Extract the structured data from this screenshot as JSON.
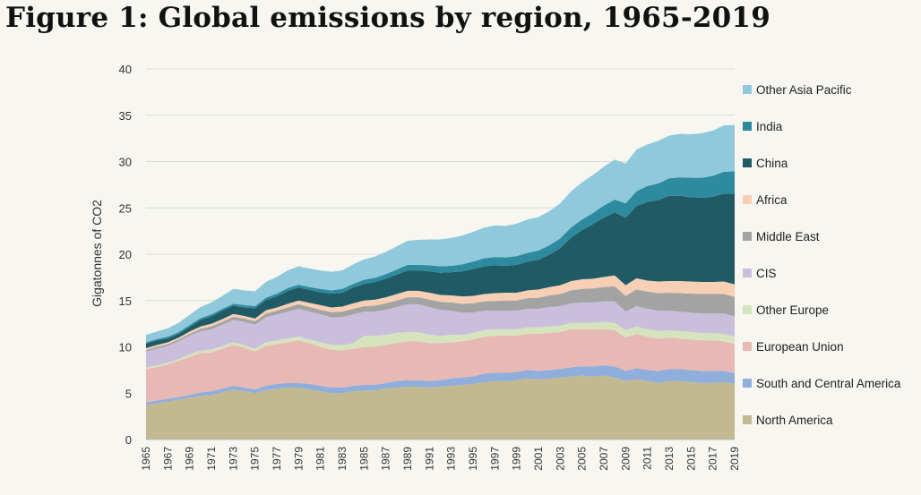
{
  "chart_data": {
    "type": "area",
    "stacked": true,
    "title": "Figure 1: Global emissions by region, 1965-2019",
    "xlabel": "",
    "ylabel": "Gigatonnes of CO2",
    "ylim": [
      0,
      40
    ],
    "yticks": [
      "0",
      "5",
      "10",
      "15",
      "20",
      "25",
      "30",
      "35",
      "40"
    ],
    "grid": true,
    "legend_position": "right",
    "x": [
      1965,
      1966,
      1967,
      1968,
      1969,
      1970,
      1971,
      1972,
      1973,
      1974,
      1975,
      1976,
      1977,
      1978,
      1979,
      1980,
      1981,
      1982,
      1983,
      1984,
      1985,
      1986,
      1987,
      1988,
      1989,
      1990,
      1991,
      1992,
      1993,
      1994,
      1995,
      1996,
      1997,
      1998,
      1999,
      2000,
      2001,
      2002,
      2003,
      2004,
      2005,
      2006,
      2007,
      2008,
      2009,
      2010,
      2011,
      2012,
      2013,
      2014,
      2015,
      2016,
      2017,
      2018,
      2019
    ],
    "xtick_labels": [
      "1965",
      "1967",
      "1969",
      "1971",
      "1973",
      "1975",
      "1977",
      "1979",
      "1981",
      "1983",
      "1985",
      "1987",
      "1989",
      "1991",
      "1993",
      "1995",
      "1997",
      "1999",
      "2001",
      "2003",
      "2005",
      "2007",
      "2009",
      "2011",
      "2013",
      "2015",
      "2017",
      "2019"
    ],
    "series": [
      {
        "name": "North America",
        "color": "#c2b990",
        "values": [
          3.7,
          3.9,
          4.1,
          4.3,
          4.5,
          4.7,
          4.8,
          5.1,
          5.4,
          5.2,
          5.0,
          5.3,
          5.5,
          5.6,
          5.6,
          5.4,
          5.2,
          5.0,
          5.0,
          5.2,
          5.3,
          5.3,
          5.5,
          5.6,
          5.7,
          5.7,
          5.6,
          5.7,
          5.8,
          5.9,
          6.0,
          6.2,
          6.3,
          6.3,
          6.4,
          6.6,
          6.5,
          6.6,
          6.7,
          6.8,
          6.9,
          6.8,
          6.9,
          6.7,
          6.3,
          6.5,
          6.3,
          6.1,
          6.3,
          6.3,
          6.2,
          6.1,
          6.1,
          6.2,
          6.0
        ]
      },
      {
        "name": "South and Central America",
        "color": "#8faedb",
        "values": [
          0.3,
          0.3,
          0.3,
          0.3,
          0.3,
          0.4,
          0.4,
          0.4,
          0.4,
          0.4,
          0.4,
          0.5,
          0.5,
          0.5,
          0.5,
          0.6,
          0.6,
          0.6,
          0.6,
          0.6,
          0.6,
          0.6,
          0.6,
          0.7,
          0.7,
          0.7,
          0.7,
          0.7,
          0.8,
          0.8,
          0.8,
          0.9,
          0.9,
          0.9,
          0.9,
          0.9,
          0.9,
          0.9,
          0.9,
          1.0,
          1.0,
          1.1,
          1.1,
          1.2,
          1.1,
          1.2,
          1.2,
          1.3,
          1.3,
          1.3,
          1.3,
          1.3,
          1.3,
          1.2,
          1.2
        ]
      },
      {
        "name": "European Union",
        "color": "#e8b8b4",
        "values": [
          3.6,
          3.6,
          3.7,
          3.9,
          4.1,
          4.2,
          4.2,
          4.3,
          4.4,
          4.3,
          4.1,
          4.3,
          4.3,
          4.4,
          4.6,
          4.4,
          4.2,
          4.1,
          4.0,
          4.0,
          4.1,
          4.1,
          4.1,
          4.1,
          4.2,
          4.2,
          4.1,
          4.0,
          3.9,
          3.9,
          4.0,
          4.0,
          4.0,
          4.0,
          3.9,
          3.9,
          4.0,
          4.0,
          4.0,
          4.1,
          4.0,
          4.0,
          3.9,
          3.9,
          3.6,
          3.7,
          3.6,
          3.5,
          3.4,
          3.3,
          3.3,
          3.3,
          3.3,
          3.2,
          3.1
        ]
      },
      {
        "name": "Other Europe",
        "color": "#d6e4bd",
        "values": [
          0.2,
          0.2,
          0.2,
          0.2,
          0.3,
          0.3,
          0.3,
          0.3,
          0.3,
          0.3,
          0.3,
          0.4,
          0.4,
          0.4,
          0.4,
          0.4,
          0.5,
          0.5,
          0.6,
          0.6,
          1.2,
          1.2,
          1.1,
          1.1,
          1.0,
          1.0,
          0.9,
          0.8,
          0.8,
          0.7,
          0.7,
          0.7,
          0.7,
          0.7,
          0.7,
          0.7,
          0.7,
          0.7,
          0.7,
          0.7,
          0.7,
          0.7,
          0.8,
          0.8,
          0.8,
          0.8,
          0.8,
          0.8,
          0.8,
          0.8,
          0.8,
          0.8,
          0.8,
          0.8,
          0.8
        ]
      },
      {
        "name": "CIS",
        "color": "#c9bedb",
        "values": [
          1.7,
          1.8,
          1.8,
          1.9,
          2.0,
          2.1,
          2.2,
          2.3,
          2.4,
          2.5,
          2.6,
          2.7,
          2.8,
          2.9,
          3.0,
          3.0,
          3.0,
          3.0,
          3.0,
          3.1,
          2.6,
          2.6,
          2.7,
          2.8,
          3.0,
          3.0,
          3.0,
          2.8,
          2.6,
          2.4,
          2.2,
          2.1,
          2.0,
          2.0,
          2.0,
          2.0,
          2.0,
          2.1,
          2.1,
          2.1,
          2.2,
          2.2,
          2.2,
          2.3,
          2.0,
          2.2,
          2.2,
          2.2,
          2.1,
          2.1,
          2.1,
          2.1,
          2.1,
          2.2,
          2.2
        ]
      },
      {
        "name": "Middle East",
        "color": "#a3a3a3",
        "values": [
          0.15,
          0.2,
          0.2,
          0.2,
          0.2,
          0.25,
          0.3,
          0.3,
          0.35,
          0.35,
          0.35,
          0.4,
          0.4,
          0.45,
          0.5,
          0.5,
          0.5,
          0.55,
          0.6,
          0.6,
          0.6,
          0.65,
          0.7,
          0.7,
          0.75,
          0.75,
          0.8,
          0.85,
          0.9,
          0.95,
          1.0,
          1.0,
          1.05,
          1.1,
          1.1,
          1.15,
          1.2,
          1.25,
          1.3,
          1.4,
          1.45,
          1.5,
          1.55,
          1.65,
          1.7,
          1.8,
          1.85,
          1.9,
          1.95,
          2.0,
          2.05,
          2.1,
          2.1,
          2.1,
          2.1
        ]
      },
      {
        "name": "Africa",
        "color": "#f6cfb5",
        "values": [
          0.2,
          0.2,
          0.2,
          0.2,
          0.25,
          0.25,
          0.3,
          0.3,
          0.3,
          0.3,
          0.3,
          0.35,
          0.35,
          0.4,
          0.4,
          0.45,
          0.5,
          0.5,
          0.55,
          0.6,
          0.6,
          0.65,
          0.65,
          0.7,
          0.7,
          0.7,
          0.75,
          0.75,
          0.75,
          0.8,
          0.8,
          0.8,
          0.85,
          0.85,
          0.85,
          0.85,
          0.9,
          0.9,
          0.95,
          1.0,
          1.05,
          1.05,
          1.1,
          1.15,
          1.15,
          1.2,
          1.2,
          1.25,
          1.25,
          1.3,
          1.3,
          1.3,
          1.3,
          1.35,
          1.35
        ]
      },
      {
        "name": "China",
        "color": "#1f5a65",
        "values": [
          0.5,
          0.5,
          0.4,
          0.4,
          0.5,
          0.7,
          0.8,
          0.9,
          0.9,
          0.9,
          1.1,
          1.1,
          1.2,
          1.4,
          1.4,
          1.4,
          1.4,
          1.5,
          1.5,
          1.7,
          1.8,
          1.9,
          2.0,
          2.1,
          2.2,
          2.2,
          2.3,
          2.4,
          2.5,
          2.7,
          2.9,
          3.0,
          3.0,
          2.9,
          3.0,
          3.1,
          3.2,
          3.5,
          4.0,
          4.7,
          5.3,
          5.9,
          6.4,
          6.8,
          7.3,
          7.8,
          8.5,
          8.8,
          9.2,
          9.2,
          9.1,
          9.1,
          9.2,
          9.5,
          9.8
        ]
      },
      {
        "name": "India",
        "color": "#2e8a9f",
        "values": [
          0.15,
          0.15,
          0.2,
          0.2,
          0.2,
          0.2,
          0.2,
          0.2,
          0.2,
          0.25,
          0.25,
          0.25,
          0.3,
          0.3,
          0.3,
          0.3,
          0.35,
          0.35,
          0.4,
          0.4,
          0.45,
          0.45,
          0.5,
          0.55,
          0.6,
          0.6,
          0.65,
          0.7,
          0.7,
          0.75,
          0.8,
          0.85,
          0.9,
          0.9,
          0.95,
          0.95,
          1.0,
          1.0,
          1.05,
          1.1,
          1.15,
          1.2,
          1.3,
          1.4,
          1.55,
          1.6,
          1.7,
          1.8,
          1.9,
          2.0,
          2.1,
          2.15,
          2.25,
          2.35,
          2.4
        ]
      },
      {
        "name": "Other Asia Pacific",
        "color": "#8fc9db",
        "values": [
          0.8,
          0.8,
          0.9,
          1.0,
          1.1,
          1.2,
          1.3,
          1.4,
          1.6,
          1.6,
          1.6,
          1.7,
          1.8,
          1.9,
          2.0,
          2.0,
          2.0,
          2.0,
          2.0,
          2.1,
          2.2,
          2.3,
          2.4,
          2.5,
          2.6,
          2.7,
          2.8,
          2.9,
          3.0,
          3.1,
          3.2,
          3.3,
          3.4,
          3.4,
          3.5,
          3.6,
          3.6,
          3.7,
          3.8,
          3.9,
          4.0,
          4.1,
          4.2,
          4.3,
          4.3,
          4.5,
          4.5,
          4.6,
          4.6,
          4.7,
          4.7,
          4.8,
          4.9,
          5.0,
          5.0
        ]
      }
    ]
  }
}
